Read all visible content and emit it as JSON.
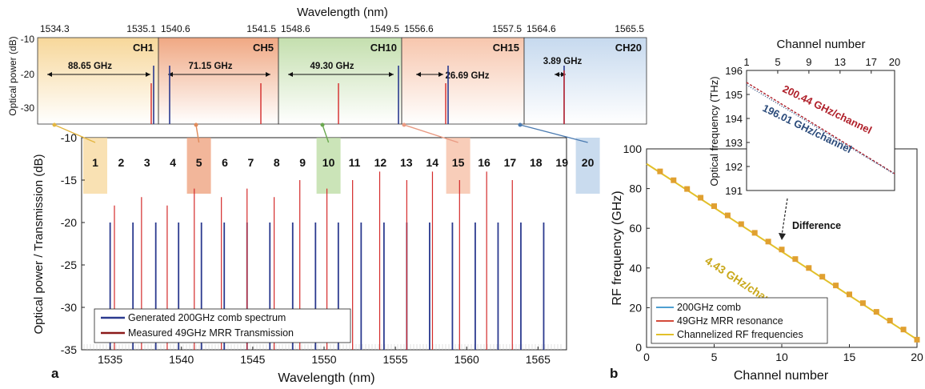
{
  "chart_data": [
    {
      "panel": "a-top",
      "type": "line",
      "top_xlabel": "Wavelength (nm)",
      "ylabel": "Optical power (dB)",
      "ylim": [
        -35,
        -10
      ],
      "yticks": [
        "-10",
        "-20",
        "-30"
      ],
      "windows": [
        {
          "channel": "CH1",
          "range": [
            "1534.3",
            "1535.1"
          ],
          "spacing": "88.65 GHz",
          "color": "#f7d79a"
        },
        {
          "channel": "CH5",
          "range": [
            "1540.6",
            "1541.5"
          ],
          "spacing": "71.15 GHz",
          "color": "#f0a883"
        },
        {
          "channel": "CH10",
          "range": [
            "1548.6",
            "1549.5"
          ],
          "spacing": "49.30 GHz",
          "color": "#c4dfae"
        },
        {
          "channel": "CH15",
          "range": [
            "1556.6",
            "1557.5"
          ],
          "spacing": "26.69 GHz",
          "color": "#f7c6ad"
        },
        {
          "channel": "CH20",
          "range": [
            "1564.6",
            "1565.5"
          ],
          "spacing": "3.89 GHz",
          "color": "#c6d9ee"
        }
      ]
    },
    {
      "panel": "a",
      "label": "a",
      "type": "bar",
      "xlabel": "Wavelength (nm)",
      "ylabel": "Optical power / Transmission (dB)",
      "xlim": [
        1533,
        1567
      ],
      "ylim": [
        -35,
        -10
      ],
      "xticks": [
        1535,
        1540,
        1545,
        1550,
        1555,
        1560,
        1565
      ],
      "yticks": [
        -10,
        -15,
        -20,
        -25,
        -30,
        -35
      ],
      "channel_labels": [
        "1",
        "2",
        "3",
        "4",
        "5",
        "6",
        "7",
        "8",
        "9",
        "10",
        "11",
        "12",
        "13",
        "14",
        "15",
        "16",
        "17",
        "18",
        "19",
        "20"
      ],
      "highlighted_channels": [
        {
          "channel": 1,
          "color": "#f7d79a"
        },
        {
          "channel": 5,
          "color": "#ee9e78"
        },
        {
          "channel": 10,
          "color": "#b9dba0"
        },
        {
          "channel": 15,
          "color": "#f5bca2"
        },
        {
          "channel": 20,
          "color": "#b7cfe8"
        }
      ],
      "series": [
        {
          "name": "Generated 200GHz comb spectrum",
          "color": "#2b3a8f",
          "x": [
            1535.0,
            1536.6,
            1538.2,
            1539.8,
            1541.4,
            1543.0,
            1544.6,
            1546.2,
            1547.8,
            1549.4,
            1551.0,
            1552.6,
            1554.2,
            1555.8,
            1557.4,
            1559.0,
            1560.6,
            1562.2,
            1563.8,
            1565.4
          ],
          "y": [
            -20,
            -20,
            -20,
            -20,
            -20,
            -20,
            -20,
            -20,
            -20,
            -20,
            -20,
            -20,
            -20,
            -20,
            -20,
            -20,
            -20,
            -20,
            -20,
            -20
          ]
        },
        {
          "name": "Measured 49GHz MRR Transmission",
          "color": "#d42a2a",
          "x": [
            1535.3,
            1537.2,
            1539.0,
            1540.9,
            1542.8,
            1544.6,
            1546.5,
            1548.3,
            1550.2,
            1552.0,
            1553.9,
            1555.8,
            1557.6,
            1559.5,
            1561.4,
            1563.2
          ],
          "y": [
            -18,
            -17,
            -18,
            -16,
            -17,
            -16,
            -17,
            -15,
            -16,
            -15,
            -14,
            -15,
            -14,
            -15,
            -14,
            -15
          ]
        }
      ]
    },
    {
      "panel": "b",
      "label": "b",
      "type": "line",
      "xlabel": "Channel number",
      "ylabel": "RF frequency (GHz)",
      "xlim": [
        0,
        20
      ],
      "ylim": [
        0,
        100
      ],
      "xticks": [
        0,
        5,
        10,
        15,
        20
      ],
      "yticks": [
        0,
        20,
        40,
        60,
        80,
        100
      ],
      "annotation": "4.43 GHz/channel",
      "difference_label": "Difference",
      "series": [
        {
          "name": "200GHz comb",
          "color": "#4e9fd1"
        },
        {
          "name": "49GHz MRR resonance",
          "color": "#d44a3a"
        },
        {
          "name": "Channelized RF frequencies",
          "color": "#e2c02a",
          "x": [
            1,
            2,
            3,
            4,
            5,
            6,
            7,
            8,
            9,
            10,
            11,
            12,
            13,
            14,
            15,
            16,
            17,
            18,
            19,
            20
          ],
          "y": [
            88.65,
            84.2,
            79.8,
            75.4,
            71.15,
            66.5,
            62.1,
            57.7,
            53.3,
            49.3,
            44.5,
            40.0,
            35.6,
            31.2,
            26.69,
            22.3,
            17.9,
            13.5,
            9.0,
            3.89
          ]
        }
      ]
    },
    {
      "panel": "b-inset",
      "type": "line",
      "xlabel": "Channel number",
      "ylabel": "Optical frequency (THz)",
      "xlim": [
        1,
        20
      ],
      "ylim": [
        191,
        196
      ],
      "xticks": [
        1,
        5,
        9,
        13,
        17,
        20
      ],
      "yticks": [
        191,
        192,
        193,
        194,
        195,
        196
      ],
      "series": [
        {
          "name": "200.44 GHz/channel",
          "color": "#b0202a",
          "x": [
            1,
            20
          ],
          "y": [
            195.5,
            191.7
          ]
        },
        {
          "name": "196.01 GHz/channel",
          "color": "#2a4a7a",
          "x": [
            1,
            20
          ],
          "y": [
            195.4,
            191.68
          ]
        }
      ]
    }
  ]
}
